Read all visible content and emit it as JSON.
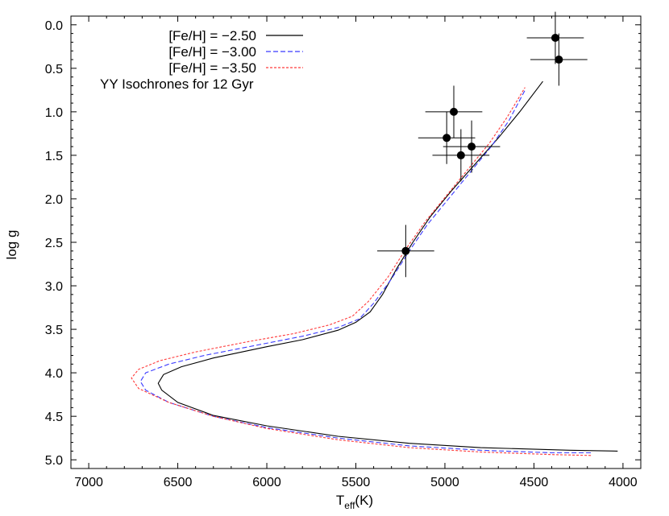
{
  "chart_data": {
    "type": "line",
    "xlabel_main": "T",
    "xlabel_sub": "eff",
    "xlabel_unit": "(K)",
    "ylabel": "log g",
    "xlim": [
      7100,
      3900
    ],
    "ylim": [
      0.0,
      5.0
    ],
    "ylim_plot": [
      -0.1,
      5.1
    ],
    "x_ticks": [
      7000,
      6500,
      6000,
      5500,
      5000,
      4500,
      4000
    ],
    "x_tick_labels": [
      "7000",
      "6500",
      "6000",
      "5500",
      "5000",
      "4500",
      "4000"
    ],
    "y_ticks": [
      0.0,
      0.5,
      1.0,
      1.5,
      2.0,
      2.5,
      3.0,
      3.5,
      4.0,
      4.5,
      5.0
    ],
    "y_tick_labels": [
      "0.0",
      "0.5",
      "1.0",
      "1.5",
      "2.0",
      "2.5",
      "3.0",
      "3.5",
      "4.0",
      "4.5",
      "5.0"
    ],
    "y_inverted": true,
    "x_inverted": true,
    "grid": false,
    "legend_position": "top-left",
    "annotation": "YY Isochrones for 12 Gyr",
    "series": [
      {
        "name": "[Fe/H] = −2.50",
        "color": "#000000",
        "style": "solid",
        "points": [
          [
            4030,
            4.9
          ],
          [
            4300,
            4.89
          ],
          [
            4800,
            4.86
          ],
          [
            5200,
            4.81
          ],
          [
            5600,
            4.73
          ],
          [
            6000,
            4.61
          ],
          [
            6300,
            4.49
          ],
          [
            6500,
            4.34
          ],
          [
            6590,
            4.2
          ],
          [
            6610,
            4.12
          ],
          [
            6580,
            4.02
          ],
          [
            6480,
            3.93
          ],
          [
            6300,
            3.83
          ],
          [
            6000,
            3.7
          ],
          [
            5800,
            3.62
          ],
          [
            5600,
            3.51
          ],
          [
            5500,
            3.42
          ],
          [
            5420,
            3.3
          ],
          [
            5350,
            3.1
          ],
          [
            5270,
            2.8
          ],
          [
            5180,
            2.5
          ],
          [
            5080,
            2.2
          ],
          [
            4960,
            1.9
          ],
          [
            4830,
            1.6
          ],
          [
            4700,
            1.3
          ],
          [
            4580,
            1.0
          ],
          [
            4450,
            0.65
          ]
        ]
      },
      {
        "name": "[Fe/H] = −3.00",
        "color": "#3a3aff",
        "style": "dashed",
        "points": [
          [
            4180,
            4.92
          ],
          [
            4400,
            4.92
          ],
          [
            4800,
            4.89
          ],
          [
            5200,
            4.84
          ],
          [
            5600,
            4.75
          ],
          [
            6000,
            4.63
          ],
          [
            6300,
            4.5
          ],
          [
            6550,
            4.34
          ],
          [
            6680,
            4.2
          ],
          [
            6710,
            4.1
          ],
          [
            6680,
            4.0
          ],
          [
            6550,
            3.9
          ],
          [
            6350,
            3.8
          ],
          [
            6050,
            3.68
          ],
          [
            5800,
            3.58
          ],
          [
            5600,
            3.48
          ],
          [
            5480,
            3.38
          ],
          [
            5400,
            3.2
          ],
          [
            5300,
            2.92
          ],
          [
            5200,
            2.6
          ],
          [
            5100,
            2.3
          ],
          [
            4980,
            2.0
          ],
          [
            4860,
            1.7
          ],
          [
            4740,
            1.4
          ],
          [
            4640,
            1.1
          ],
          [
            4550,
            0.75
          ]
        ]
      },
      {
        "name": "[Fe/H] = −3.50",
        "color": "#ff3a3a",
        "style": "dotted",
        "points": [
          [
            4180,
            4.95
          ],
          [
            4400,
            4.94
          ],
          [
            4800,
            4.91
          ],
          [
            5200,
            4.86
          ],
          [
            5600,
            4.77
          ],
          [
            6000,
            4.64
          ],
          [
            6300,
            4.5
          ],
          [
            6550,
            4.34
          ],
          [
            6720,
            4.18
          ],
          [
            6760,
            4.06
          ],
          [
            6720,
            3.96
          ],
          [
            6600,
            3.86
          ],
          [
            6400,
            3.76
          ],
          [
            6100,
            3.64
          ],
          [
            5850,
            3.55
          ],
          [
            5650,
            3.45
          ],
          [
            5520,
            3.35
          ],
          [
            5430,
            3.18
          ],
          [
            5320,
            2.9
          ],
          [
            5220,
            2.58
          ],
          [
            5110,
            2.26
          ],
          [
            4990,
            1.96
          ],
          [
            4870,
            1.66
          ],
          [
            4750,
            1.36
          ],
          [
            4650,
            1.06
          ],
          [
            4550,
            0.72
          ]
        ]
      }
    ],
    "points_with_errors": [
      {
        "x": 4380,
        "y": 0.15,
        "xerr": 160,
        "yerr": 0.3
      },
      {
        "x": 4360,
        "y": 0.4,
        "xerr": 160,
        "yerr": 0.3
      },
      {
        "x": 4950,
        "y": 1.0,
        "xerr": 160,
        "yerr": 0.3
      },
      {
        "x": 4990,
        "y": 1.3,
        "xerr": 160,
        "yerr": 0.3
      },
      {
        "x": 4850,
        "y": 1.4,
        "xerr": 160,
        "yerr": 0.3
      },
      {
        "x": 4910,
        "y": 1.5,
        "xerr": 160,
        "yerr": 0.3
      },
      {
        "x": 5220,
        "y": 2.6,
        "xerr": 160,
        "yerr": 0.3
      }
    ]
  }
}
